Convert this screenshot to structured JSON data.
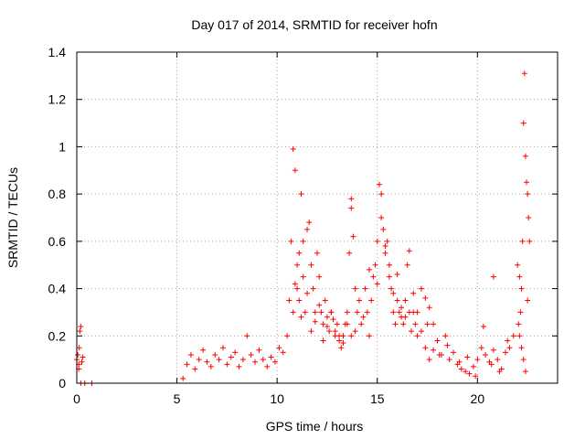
{
  "chart_data": {
    "type": "scatter",
    "title": "Day 017 of 2014, SRMTID for receiver hofn",
    "xlabel": "GPS time / hours",
    "ylabel": "SRMTID / TECUs",
    "xlim": [
      0,
      24
    ],
    "ylim": [
      0,
      1.4
    ],
    "xticks": [
      "0",
      "5",
      "10",
      "15",
      "20"
    ],
    "yticks": [
      "0",
      "0.2",
      "0.4",
      "0.6",
      "0.8",
      "1",
      "1.2",
      "1.4"
    ],
    "grid": true,
    "marker": "+",
    "color": "#ff0000",
    "series": [
      {
        "name": "SRMTID",
        "x": [
          0.0,
          0.05,
          0.1,
          0.12,
          0.15,
          0.2,
          0.25,
          0.3,
          0.1,
          0.2,
          0.4,
          0.75,
          5.3,
          5.5,
          5.7,
          5.9,
          6.1,
          6.3,
          6.5,
          6.7,
          6.9,
          7.1,
          7.3,
          7.5,
          7.7,
          7.9,
          8.1,
          8.3,
          8.5,
          8.7,
          8.9,
          9.1,
          9.3,
          9.5,
          9.7,
          9.9,
          10.1,
          10.3,
          10.5,
          10.6,
          10.7,
          10.8,
          10.9,
          11.0,
          11.1,
          11.2,
          11.3,
          11.4,
          11.5,
          11.6,
          11.7,
          11.8,
          11.9,
          12.0,
          12.1,
          12.2,
          12.3,
          12.4,
          12.5,
          12.6,
          12.7,
          12.8,
          12.9,
          13.0,
          13.1,
          13.2,
          13.3,
          13.4,
          13.5,
          13.6,
          13.7,
          13.8,
          13.9,
          14.0,
          10.8,
          10.9,
          11.0,
          11.1,
          11.2,
          11.3,
          11.5,
          11.7,
          11.9,
          12.1,
          12.3,
          12.5,
          12.7,
          12.9,
          13.1,
          13.3,
          13.5,
          13.7,
          13.9,
          14.1,
          14.2,
          14.3,
          14.4,
          14.5,
          14.6,
          14.7,
          14.8,
          14.9,
          15.0,
          15.1,
          15.2,
          15.3,
          15.4,
          15.5,
          15.6,
          15.7,
          15.8,
          15.9,
          16.0,
          16.1,
          16.2,
          16.3,
          16.4,
          16.5,
          16.6,
          16.7,
          16.8,
          16.9,
          17.0,
          15.0,
          15.2,
          15.4,
          15.6,
          15.8,
          16.0,
          16.2,
          16.4,
          16.6,
          16.8,
          17.0,
          17.2,
          17.4,
          17.6,
          17.8,
          17.2,
          17.4,
          17.6,
          17.8,
          18.0,
          18.2,
          18.4,
          18.6,
          18.8,
          19.0,
          19.2,
          19.4,
          19.6,
          19.8,
          20.0,
          20.2,
          20.4,
          20.6,
          20.8,
          21.0,
          21.2,
          21.4,
          21.6,
          21.8,
          17.5,
          18.1,
          18.5,
          19.1,
          19.5,
          19.9,
          20.3,
          20.7,
          21.1,
          21.5,
          22.0,
          22.05,
          22.1,
          22.15,
          22.2,
          22.25,
          22.3,
          22.35,
          22.4,
          22.45,
          22.5,
          22.55,
          22.6,
          22.1,
          22.2,
          22.3,
          22.4,
          22.5,
          13.7,
          14.6,
          20.8
        ],
        "y": [
          0.1,
          0.12,
          0.08,
          0.15,
          0.22,
          0.24,
          0.09,
          0.11,
          0.06,
          0.0,
          0.0,
          0.0,
          0.02,
          0.08,
          0.12,
          0.06,
          0.1,
          0.14,
          0.09,
          0.07,
          0.12,
          0.1,
          0.15,
          0.08,
          0.11,
          0.13,
          0.07,
          0.1,
          0.2,
          0.12,
          0.09,
          0.14,
          0.1,
          0.07,
          0.11,
          0.09,
          0.15,
          0.13,
          0.2,
          0.35,
          0.6,
          0.99,
          0.9,
          0.4,
          0.55,
          0.8,
          0.6,
          0.3,
          0.65,
          0.68,
          0.5,
          0.4,
          0.3,
          0.55,
          0.45,
          0.3,
          0.25,
          0.35,
          0.28,
          0.22,
          0.3,
          0.27,
          0.2,
          0.25,
          0.18,
          0.15,
          0.2,
          0.25,
          0.3,
          0.55,
          0.78,
          0.62,
          0.4,
          0.3,
          0.3,
          0.42,
          0.5,
          0.35,
          0.28,
          0.45,
          0.38,
          0.22,
          0.26,
          0.33,
          0.18,
          0.24,
          0.3,
          0.22,
          0.2,
          0.17,
          0.25,
          0.2,
          0.22,
          0.35,
          0.25,
          0.28,
          0.4,
          0.3,
          0.2,
          0.35,
          0.45,
          0.5,
          0.6,
          0.84,
          0.7,
          0.65,
          0.55,
          0.6,
          0.45,
          0.4,
          0.3,
          0.25,
          0.35,
          0.3,
          0.28,
          0.25,
          0.35,
          0.5,
          0.3,
          0.22,
          0.3,
          0.25,
          0.2,
          0.42,
          0.8,
          0.58,
          0.5,
          0.38,
          0.46,
          0.32,
          0.28,
          0.56,
          0.38,
          0.3,
          0.4,
          0.36,
          0.32,
          0.25,
          0.22,
          0.15,
          0.1,
          0.14,
          0.18,
          0.12,
          0.2,
          0.1,
          0.13,
          0.08,
          0.06,
          0.05,
          0.04,
          0.07,
          0.1,
          0.15,
          0.12,
          0.09,
          0.14,
          0.1,
          0.06,
          0.13,
          0.15,
          0.2,
          0.25,
          0.12,
          0.16,
          0.09,
          0.11,
          0.03,
          0.24,
          0.08,
          0.05,
          0.18,
          0.5,
          0.25,
          0.2,
          0.3,
          0.4,
          0.6,
          1.1,
          1.31,
          0.96,
          0.85,
          0.8,
          0.7,
          0.6,
          0.45,
          0.15,
          0.1,
          0.05,
          0.35,
          0.74,
          0.48,
          0.45
        ]
      }
    ]
  }
}
